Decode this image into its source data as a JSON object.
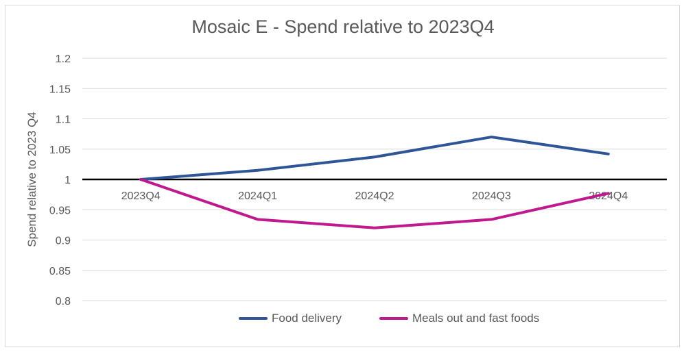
{
  "chart_data": {
    "type": "line",
    "title": "Mosaic E - Spend relative to 2023Q4",
    "xlabel": "",
    "ylabel": "Spend relative to 2023 Q4",
    "categories": [
      "2023Q4",
      "2024Q1",
      "2024Q2",
      "2024Q3",
      "2024Q4"
    ],
    "ylim": [
      0.8,
      1.2
    ],
    "yticks": [
      "1.2",
      "1.15",
      "1.1",
      "1.05",
      "1",
      "0.95",
      "0.9",
      "0.85",
      "0.8"
    ],
    "grid": true,
    "legend_position": "bottom",
    "series": [
      {
        "name": "Food delivery",
        "color": "#2e5597",
        "values": [
          1.0,
          1.015,
          1.037,
          1.07,
          1.042
        ]
      },
      {
        "name": "Meals out and fast foods",
        "color": "#c0198e",
        "values": [
          1.0,
          0.934,
          0.92,
          0.934,
          0.977
        ]
      }
    ]
  }
}
